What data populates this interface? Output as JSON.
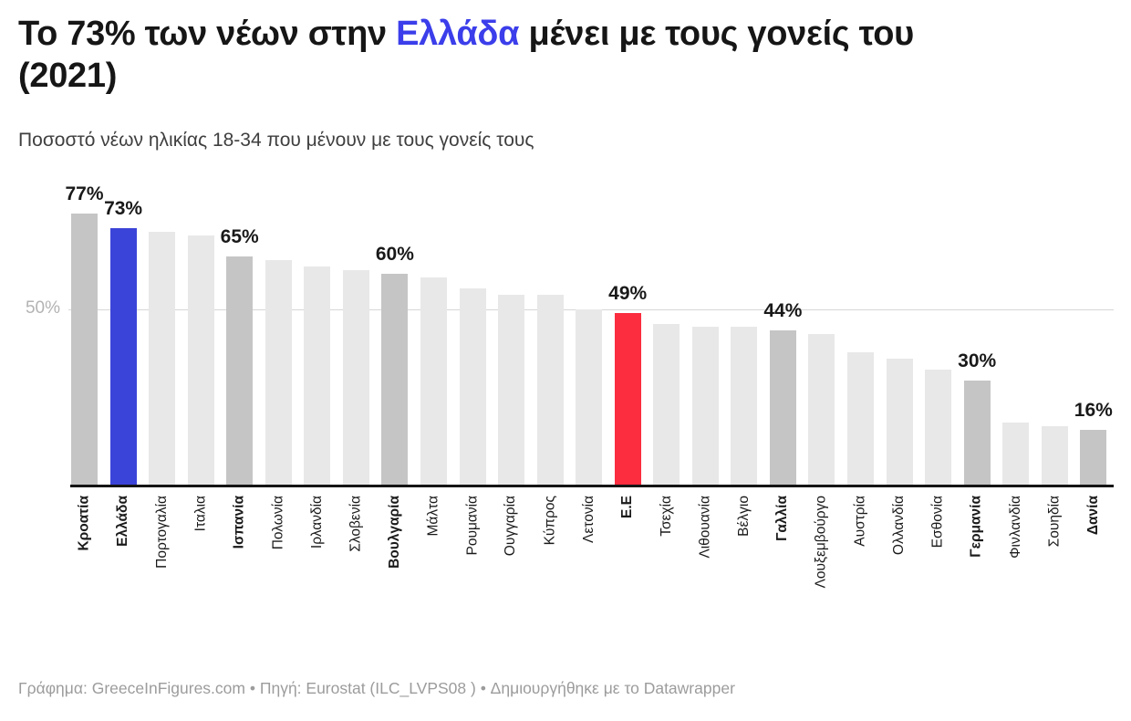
{
  "header": {
    "title": {
      "pre": "Το 73% των νέων στην ",
      "highlight": "Ελλάδα",
      "post": " μένει με τους γονείς του",
      "line2": "(2021)"
    },
    "subtitle": "Ποσοστό νέων ηλικίας 18-34 που μένουν με τους γονείς τους"
  },
  "colors": {
    "default_bar": "#e8e8e8",
    "emphasis_bar": "#c5c5c5",
    "greece_bar": "#3b44d8",
    "eu_bar": "#fb2d3f",
    "title_highlight": "#3b3eea",
    "grid_line": "#d6d6d6",
    "axis_line": "#151515",
    "value_label": "#191919",
    "y_tick_label": "#b3b3b3"
  },
  "chart_data": {
    "type": "bar",
    "title": "Το 73% των νέων στην Ελλάδα μένει με τους γονείς του (2021)",
    "subtitle": "Ποσοστό νέων ηλικίας 18-34 που μένουν με τους γονείς τους",
    "unit": "%",
    "ylim": [
      0,
      80
    ],
    "grid": "single horizontal gridline at 50%",
    "legend": "none",
    "y_axis": {
      "ticks": [
        {
          "value": 50,
          "label": "50%"
        }
      ],
      "gridline_values": [
        50
      ]
    },
    "categories": [
      "Κροατία",
      "Ελλάδα",
      "Πορτογαλία",
      "Ιταλια",
      "Ισπανία",
      "Πολωνία",
      "Ιρλανδία",
      "Σλοβενία",
      "Βουλγαρία",
      "Μάλτα",
      "Ρουμανία",
      "Ουγγαρία",
      "Κύπρος",
      "Λετονία",
      "Ε.Ε",
      "Τσεχία",
      "Λιθουανία",
      "Βέλγιο",
      "Γαλλία",
      "Λουξεμβούργο",
      "Αυστρία",
      "Ολλανδία",
      "Εσθονία",
      "Γερμανία",
      "Φινλανδία",
      "Σουηδία",
      "Δανία"
    ],
    "values": [
      77,
      73,
      72,
      71,
      65,
      64,
      62,
      61,
      60,
      59,
      56,
      54,
      54,
      50,
      49,
      46,
      45,
      45,
      44,
      43,
      38,
      36,
      33,
      30,
      18,
      17,
      16
    ],
    "bars": [
      {
        "label": "Κροατία",
        "value": 77,
        "style": "emphasis",
        "bold_label": true,
        "value_label": "77%"
      },
      {
        "label": "Ελλάδα",
        "value": 73,
        "style": "greece",
        "bold_label": true,
        "value_label": "73%"
      },
      {
        "label": "Πορτογαλία",
        "value": 72,
        "style": "default",
        "bold_label": false
      },
      {
        "label": "Ιταλια",
        "value": 71,
        "style": "default",
        "bold_label": false
      },
      {
        "label": "Ισπανία",
        "value": 65,
        "style": "emphasis",
        "bold_label": true,
        "value_label": "65%"
      },
      {
        "label": "Πολωνία",
        "value": 64,
        "style": "default",
        "bold_label": false
      },
      {
        "label": "Ιρλανδία",
        "value": 62,
        "style": "default",
        "bold_label": false
      },
      {
        "label": "Σλοβενία",
        "value": 61,
        "style": "default",
        "bold_label": false
      },
      {
        "label": "Βουλγαρία",
        "value": 60,
        "style": "emphasis",
        "bold_label": true,
        "value_label": "60%"
      },
      {
        "label": "Μάλτα",
        "value": 59,
        "style": "default",
        "bold_label": false
      },
      {
        "label": "Ρουμανία",
        "value": 56,
        "style": "default",
        "bold_label": false
      },
      {
        "label": "Ουγγαρία",
        "value": 54,
        "style": "default",
        "bold_label": false
      },
      {
        "label": "Κύπρος",
        "value": 54,
        "style": "default",
        "bold_label": false
      },
      {
        "label": "Λετονία",
        "value": 50,
        "style": "default",
        "bold_label": false
      },
      {
        "label": "Ε.Ε",
        "value": 49,
        "style": "eu",
        "bold_label": true,
        "value_label": "49%"
      },
      {
        "label": "Τσεχία",
        "value": 46,
        "style": "default",
        "bold_label": false
      },
      {
        "label": "Λιθουανία",
        "value": 45,
        "style": "default",
        "bold_label": false
      },
      {
        "label": "Βέλγιο",
        "value": 45,
        "style": "default",
        "bold_label": false
      },
      {
        "label": "Γαλλία",
        "value": 44,
        "style": "emphasis",
        "bold_label": true,
        "value_label": "44%"
      },
      {
        "label": "Λουξεμβούργο",
        "value": 43,
        "style": "default",
        "bold_label": false
      },
      {
        "label": "Αυστρία",
        "value": 38,
        "style": "default",
        "bold_label": false
      },
      {
        "label": "Ολλανδία",
        "value": 36,
        "style": "default",
        "bold_label": false
      },
      {
        "label": "Εσθονία",
        "value": 33,
        "style": "default",
        "bold_label": false
      },
      {
        "label": "Γερμανία",
        "value": 30,
        "style": "emphasis",
        "bold_label": true,
        "value_label": "30%"
      },
      {
        "label": "Φινλανδία",
        "value": 18,
        "style": "default",
        "bold_label": false
      },
      {
        "label": "Σουηδία",
        "value": 17,
        "style": "default",
        "bold_label": false
      },
      {
        "label": "Δανία",
        "value": 16,
        "style": "emphasis",
        "bold_label": true,
        "value_label": "16%"
      }
    ]
  },
  "footer": {
    "text": "Γράφημα: GreeceInFigures.com • Πηγή: Eurostat (ILC_LVPS08 ) • Δημιουργήθηκε με το Datawrapper"
  }
}
